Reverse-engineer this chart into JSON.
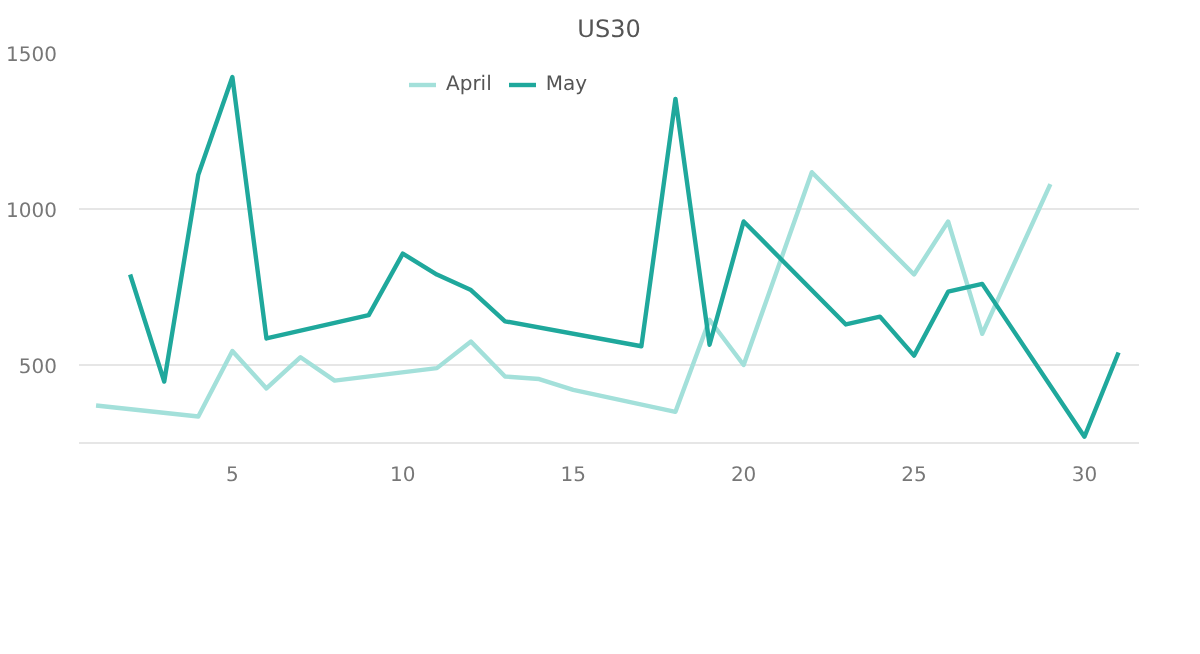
{
  "chart_data": {
    "type": "line",
    "title": "US30",
    "legend": "top",
    "grid": "y",
    "marker": "none",
    "line_style": "solid",
    "xlim": [
      0.5,
      31.6
    ],
    "xticks": [
      5,
      10,
      15,
      20,
      25,
      30
    ],
    "ylim": [
      250,
      1500
    ],
    "yticks": [
      500,
      1000,
      1500
    ],
    "series": [
      {
        "name": "April",
        "color": "#a3e0da",
        "x": [
          1,
          4,
          5,
          6,
          7,
          8,
          11,
          12,
          13,
          14,
          15,
          18,
          19,
          20,
          22,
          25,
          26,
          27,
          29
        ],
        "values": [
          370,
          335,
          545,
          425,
          525,
          450,
          490,
          575,
          463,
          455,
          420,
          350,
          645,
          500,
          1118,
          790,
          960,
          600,
          1080
        ]
      },
      {
        "name": "May",
        "color": "#1fa89c",
        "x": [
          2,
          3,
          4,
          5,
          6,
          9,
          10,
          11,
          12,
          13,
          17,
          18,
          19,
          20,
          23,
          24,
          25,
          26,
          27,
          30,
          31
        ],
        "values": [
          790,
          447,
          1110,
          1423,
          585,
          660,
          857,
          790,
          740,
          640,
          560,
          1353,
          565,
          960,
          630,
          655,
          530,
          735,
          760,
          270,
          540
        ]
      }
    ]
  }
}
